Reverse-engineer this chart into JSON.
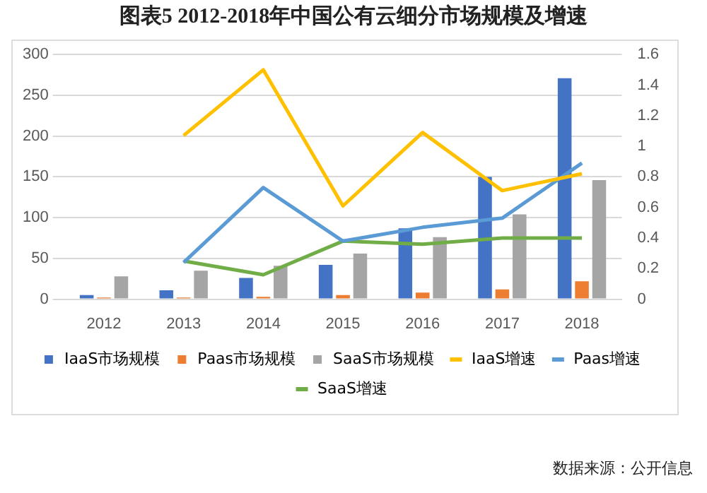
{
  "chart_data": {
    "type": "bar",
    "title": "图表5 2012-2018年中国公有云细分市场规模及增速",
    "categories": [
      "2012",
      "2013",
      "2014",
      "2015",
      "2016",
      "2017",
      "2018"
    ],
    "series": [
      {
        "name": "IaaS市场规模",
        "color": "#4472c4",
        "values": [
          5,
          11,
          26,
          42,
          87,
          150,
          271
        ]
      },
      {
        "name": "Paas市场规模",
        "color": "#ed7d31",
        "values": [
          2,
          2,
          3,
          5,
          8,
          12,
          22
        ]
      },
      {
        "name": "SaaS市场规模",
        "color": "#a5a5a5",
        "values": [
          28,
          35,
          41,
          56,
          76,
          104,
          146
        ]
      },
      {
        "name": "IaaS增速",
        "type": "line",
        "axis": "y2",
        "color": "#ffc000",
        "values": [
          null,
          1.07,
          1.5,
          0.61,
          1.09,
          0.71,
          0.82
        ]
      },
      {
        "name": "Paas增速",
        "type": "line",
        "axis": "y2",
        "color": "#5b9bd5",
        "values": [
          null,
          0.24,
          0.73,
          0.38,
          0.47,
          0.53,
          0.89
        ]
      },
      {
        "name": "SaaS增速",
        "type": "line",
        "axis": "y2",
        "color": "#70ad47",
        "values": [
          null,
          0.25,
          0.16,
          0.38,
          0.36,
          0.4,
          0.4
        ]
      }
    ],
    "ylim": [
      0,
      300
    ],
    "yticks": [
      0,
      50,
      100,
      150,
      200,
      250,
      300
    ],
    "y2lim": [
      0,
      1.6
    ],
    "y2ticks": [
      0,
      0.2,
      0.4,
      0.6,
      0.8,
      1,
      1.2,
      1.4,
      1.6
    ],
    "grid": "y",
    "legend": "bottom",
    "marker": "none",
    "annotations": [
      "数据来源：公开信息"
    ]
  }
}
